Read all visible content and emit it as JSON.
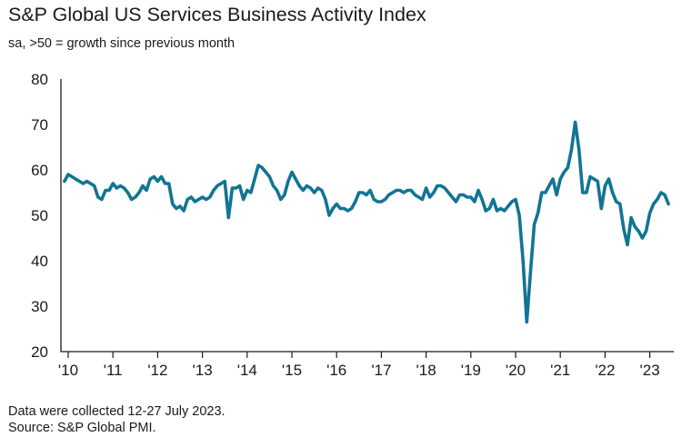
{
  "chart_data": {
    "type": "line",
    "title": "S&P Global US Services Business Activity Index",
    "subtitle": "sa, >50 = growth since previous month",
    "xlabel": "",
    "ylabel": "",
    "ylim": [
      20,
      80
    ],
    "yticks": [
      20,
      30,
      40,
      50,
      60,
      70,
      80
    ],
    "xlim": [
      2010.0,
      2023.583
    ],
    "xticks": [
      {
        "value": 2010,
        "label": "'10"
      },
      {
        "value": 2011,
        "label": "'11"
      },
      {
        "value": 2012,
        "label": "'12"
      },
      {
        "value": 2013,
        "label": "'13"
      },
      {
        "value": 2014,
        "label": "'14"
      },
      {
        "value": 2015,
        "label": "'15"
      },
      {
        "value": 2016,
        "label": "'16"
      },
      {
        "value": 2017,
        "label": "'17"
      },
      {
        "value": 2018,
        "label": "'18"
      },
      {
        "value": 2019,
        "label": "'19"
      },
      {
        "value": 2020,
        "label": "'20"
      },
      {
        "value": 2021,
        "label": "'21"
      },
      {
        "value": 2022,
        "label": "'22"
      },
      {
        "value": 2023,
        "label": "'23"
      }
    ],
    "grid": false,
    "line_color": "#127494",
    "series": [
      {
        "name": "Services Business Activity Index",
        "start": "2009-12",
        "frequency": "monthly",
        "values": [
          57.5,
          59.0,
          58.5,
          58.0,
          57.5,
          57.0,
          57.5,
          57.0,
          56.5,
          54.0,
          53.5,
          55.5,
          55.5,
          57.0,
          56.0,
          56.5,
          56.0,
          55.0,
          53.5,
          54.0,
          55.0,
          56.5,
          55.5,
          58.0,
          58.5,
          57.5,
          58.5,
          57.0,
          57.0,
          52.5,
          51.5,
          52.0,
          51.0,
          53.5,
          54.0,
          53.0,
          53.5,
          54.0,
          53.5,
          54.0,
          55.5,
          56.5,
          57.0,
          57.5,
          49.5,
          56.0,
          56.0,
          56.5,
          53.5,
          55.5,
          55.0,
          58.0,
          61.0,
          60.5,
          59.5,
          58.5,
          56.5,
          55.5,
          53.5,
          54.5,
          57.5,
          59.5,
          58.0,
          56.5,
          55.5,
          56.5,
          56.0,
          55.0,
          56.0,
          55.5,
          53.5,
          50.0,
          51.5,
          52.5,
          51.5,
          51.5,
          51.0,
          51.5,
          53.0,
          55.0,
          55.0,
          54.5,
          55.5,
          53.5,
          53.0,
          53.0,
          53.5,
          54.5,
          55.0,
          55.5,
          55.5,
          55.0,
          55.5,
          55.5,
          54.5,
          54.0,
          53.5,
          56.0,
          54.0,
          55.0,
          56.5,
          56.5,
          56.0,
          55.0,
          54.0,
          53.0,
          54.5,
          54.5,
          54.0,
          54.0,
          53.0,
          55.5,
          53.5,
          51.0,
          51.5,
          53.5,
          51.0,
          51.5,
          51.0,
          52.0,
          53.0,
          53.5,
          50.0,
          40.0,
          26.5,
          37.5,
          48.0,
          50.5,
          55.0,
          55.0,
          56.5,
          58.0,
          54.5,
          58.0,
          59.5,
          60.5,
          64.5,
          70.5,
          64.5,
          55.0,
          55.0,
          58.5,
          58.0,
          57.5,
          51.5,
          56.5,
          58.0,
          55.0,
          53.0,
          52.5,
          47.0,
          43.5,
          49.5,
          47.5,
          46.5,
          45.0,
          46.5,
          50.5,
          52.5,
          53.5,
          55.0,
          54.5,
          52.5
        ]
      }
    ]
  },
  "footnotes": {
    "line1": "Data were collected 12-27 July 2023.",
    "line2": "Source: S&P Global PMI."
  }
}
